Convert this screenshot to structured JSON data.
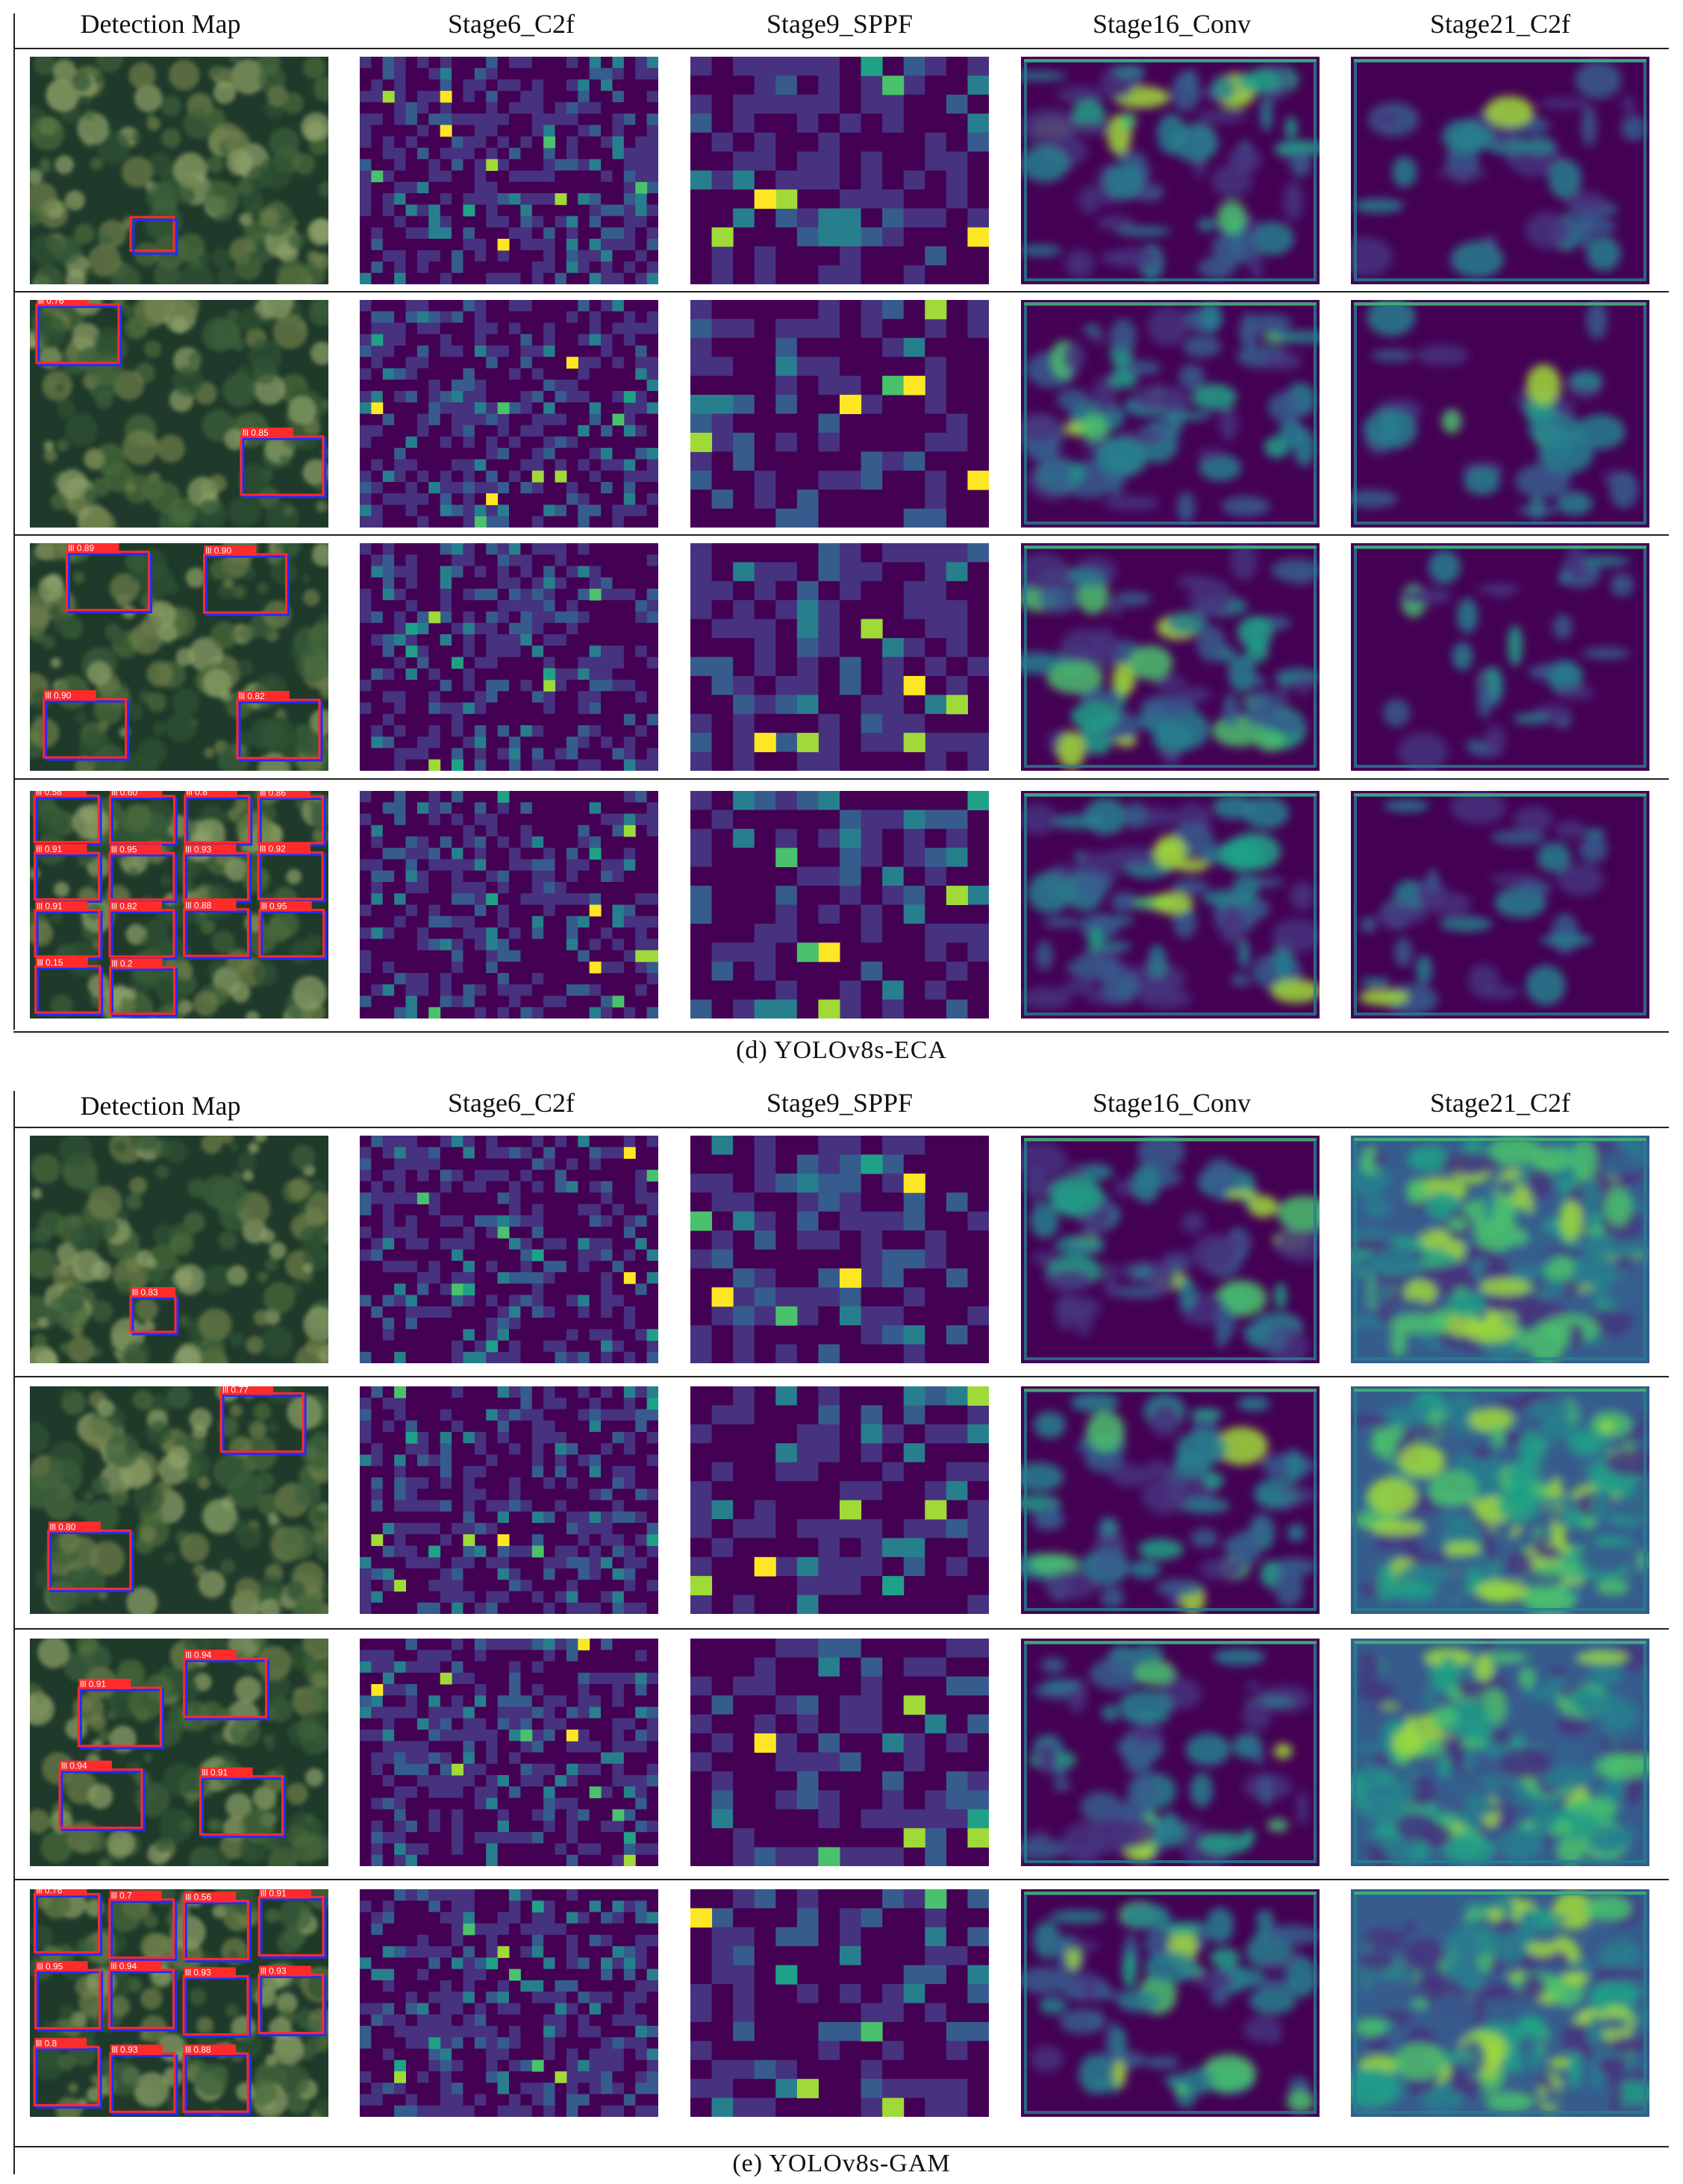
{
  "colors": {
    "viridis": [
      "#440154",
      "#46327e",
      "#365c8d",
      "#277f8e",
      "#1fa187",
      "#4ac16d",
      "#a0da39",
      "#fde725"
    ],
    "forest_dark": "#1f3a2a",
    "forest_mid": "#4a6b3c",
    "forest_light": "#8ea36a",
    "box_red": "#ff2b2b",
    "box_blue": "#1f2fff"
  },
  "columns": [
    "Detection Map",
    "Stage6_C2f",
    "Stage9_SPPF",
    "Stage16_Conv",
    "Stage21_C2f"
  ],
  "panels": [
    {
      "caption": "(d)  YOLOv8s-ECA",
      "detections": [
        [
          ""
        ],
        [
          "lll 0.76",
          "lll 0.85"
        ],
        [
          "lll 0.89",
          "lll 0.90",
          "lll 0.90",
          "lll 0.82"
        ],
        [
          "lll 0.58",
          "lll 0.60",
          "lll 0.8",
          "lll 0.86",
          "lll 0.91",
          "lll 0.95",
          "lll 0.93",
          "lll 0.92",
          "lll 0.91",
          "lll 0.82",
          "lll 0.88",
          "lll 0.95",
          "lll 0.15",
          "lll 0.2"
        ]
      ]
    },
    {
      "caption": "(e)  YOLOv8s-GAM",
      "detections": [
        [
          "lll 0.83"
        ],
        [
          "lll 0.80",
          "lll 0.77"
        ],
        [
          "lll 0.91",
          "lll 0.94",
          "lll 0.94",
          "lll 0.91"
        ],
        [
          "lll 0.76",
          "lll 0.7",
          "lll 0.56",
          "lll 0.91",
          "lll 0.95",
          "lll 0.94",
          "lll 0.93",
          "lll 0.93",
          "lll 0.8",
          "lll 0.93",
          "lll 0.88"
        ]
      ]
    }
  ]
}
